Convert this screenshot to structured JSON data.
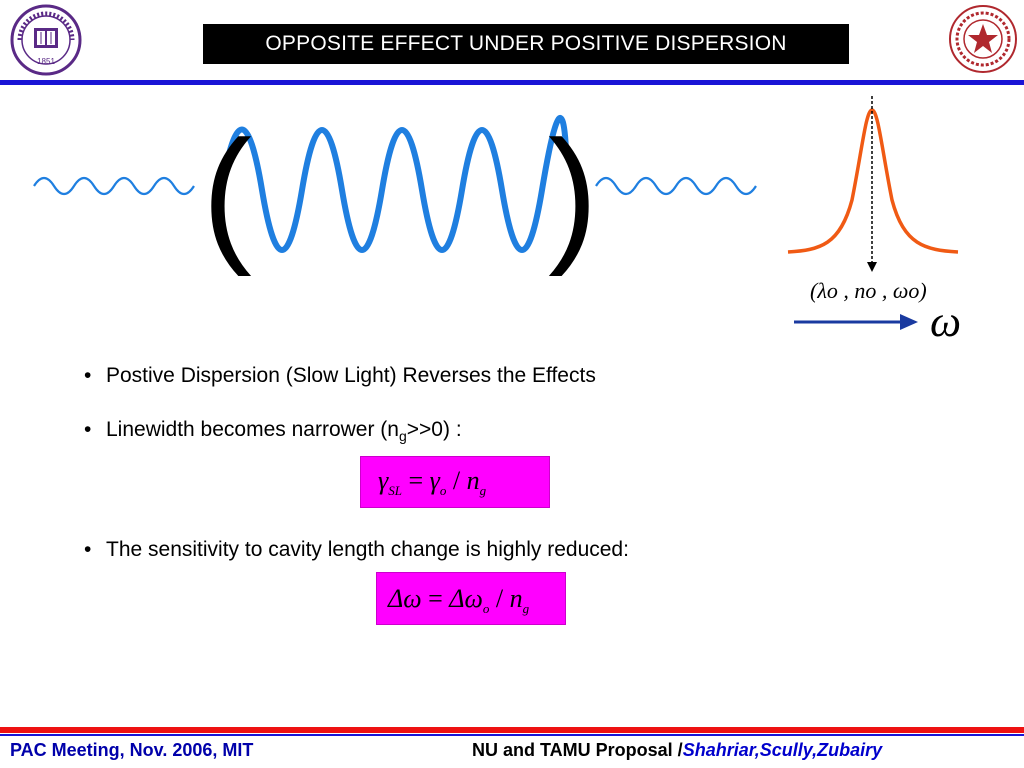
{
  "header": {
    "title": "OPPOSITE EFFECT UNDER POSITIVE DISPERSION",
    "left_logo": "northwestern-university-seal",
    "right_logo": "texas-am-university-seal",
    "left_logo_text": "NORTHWESTERN UNIVERSITY · 1851",
    "rule_color": "#1a14d6"
  },
  "diagram": {
    "left_paren": "(",
    "right_paren": ")",
    "peak_label": "(λo , no , ωo)",
    "axis_symbol": "ω",
    "wave_color": "#1f7fe0",
    "peak_color": "#f05a14"
  },
  "bullets": [
    {
      "text": "Postive Dispersion (Slow Light) Reverses the Effects"
    },
    {
      "text_before": "Linewidth becomes narrower (n",
      "sub": "g",
      "text_after": ">>0) :"
    },
    {
      "text": "The sensitivity to cavity length change is highly reduced:"
    }
  ],
  "formulas": {
    "f1": {
      "lhs": "γ",
      "lhs_sub": "SL",
      "eq": " = ",
      "rhs": "γ",
      "rhs_sub": "o",
      "div": " / ",
      "n": "n",
      "n_sub": "g"
    },
    "f2": {
      "lhs": "Δω",
      "eq": " = ",
      "rhs": "Δω",
      "rhs_sub": "o",
      "div": " / ",
      "n": "n",
      "n_sub": "g"
    },
    "box_color": "#ff00ff"
  },
  "footer": {
    "left": "PAC Meeting, Nov. 2006, MIT",
    "right_main": "NU and TAMU Proposal /",
    "right_names": "Shahriar,Scully,Zubairy"
  }
}
